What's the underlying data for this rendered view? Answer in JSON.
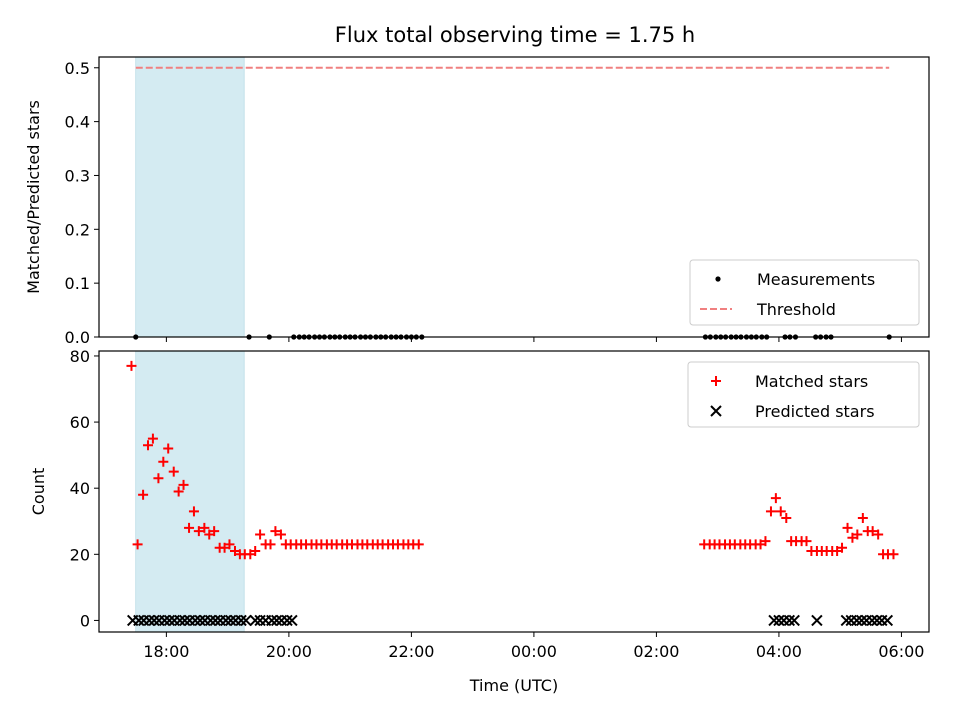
{
  "chart_data": [
    {
      "type": "scatter",
      "title": "Flux total observing time = 1.75 h",
      "xlabel": "",
      "ylabel": "Matched/Predicted stars",
      "ylim": [
        0,
        0.52
      ],
      "yticks": [
        "0.0",
        "0.1",
        "0.2",
        "0.3",
        "0.4",
        "0.5"
      ],
      "ytick_values": [
        0,
        0.1,
        0.2,
        0.3,
        0.4,
        0.5
      ],
      "threshold": {
        "name": "Threshold",
        "value": 0.5,
        "x_start": 17.5,
        "x_end": 29.8,
        "color": "#f08080"
      },
      "shaded_interval": {
        "x_start": 17.5,
        "x_end": 19.27,
        "color": "#d4ebf2"
      },
      "legend": {
        "position": "lower-right",
        "entries": [
          "Measurements",
          "Threshold"
        ]
      },
      "series": [
        {
          "name": "Measurements",
          "marker": "dot",
          "color": "#000000",
          "x": [
            17.5,
            19.35,
            19.68,
            20.08,
            20.17,
            20.25,
            20.33,
            20.42,
            20.5,
            20.58,
            20.67,
            20.75,
            20.83,
            20.92,
            21.0,
            21.08,
            21.17,
            21.25,
            21.33,
            21.42,
            21.5,
            21.58,
            21.67,
            21.75,
            21.83,
            21.92,
            22.0,
            22.08,
            22.17,
            26.8,
            26.88,
            26.97,
            27.05,
            27.13,
            27.22,
            27.3,
            27.38,
            27.47,
            27.55,
            27.63,
            27.72,
            27.8,
            28.1,
            28.18,
            28.27,
            28.6,
            28.68,
            28.77,
            28.85,
            29.8
          ],
          "y": [
            0,
            0,
            0,
            0,
            0,
            0,
            0,
            0,
            0,
            0,
            0,
            0,
            0,
            0,
            0,
            0,
            0,
            0,
            0,
            0,
            0,
            0,
            0,
            0,
            0,
            0,
            0,
            0,
            0,
            0,
            0,
            0,
            0,
            0,
            0,
            0,
            0,
            0,
            0,
            0,
            0,
            0,
            0,
            0,
            0,
            0,
            0,
            0,
            0,
            0
          ]
        }
      ]
    },
    {
      "type": "scatter",
      "title": "",
      "xlabel": "Time (UTC)",
      "ylabel": "Count",
      "ylim": [
        -3.5,
        81.5
      ],
      "yticks": [
        "0",
        "20",
        "40",
        "60",
        "80"
      ],
      "ytick_values": [
        0,
        20,
        40,
        60,
        80
      ],
      "shaded_interval": {
        "x_start": 17.5,
        "x_end": 19.27,
        "color": "#d4ebf2"
      },
      "legend": {
        "position": "upper-right",
        "entries": [
          "Matched stars",
          "Predicted stars"
        ]
      },
      "series": [
        {
          "name": "Matched stars",
          "marker": "plus",
          "color": "#ff0000",
          "x": [
            17.43,
            17.53,
            17.62,
            17.7,
            17.78,
            17.87,
            17.95,
            18.03,
            18.12,
            18.2,
            18.28,
            18.37,
            18.45,
            18.53,
            18.62,
            18.7,
            18.78,
            18.87,
            18.95,
            19.03,
            19.12,
            19.2,
            19.28,
            19.37,
            19.45,
            19.53,
            19.62,
            19.7,
            19.78,
            19.87,
            19.95,
            20.03,
            20.12,
            20.2,
            20.28,
            20.37,
            20.45,
            20.53,
            20.62,
            20.7,
            20.78,
            20.87,
            20.95,
            21.03,
            21.12,
            21.2,
            21.28,
            21.37,
            21.45,
            21.53,
            21.62,
            21.7,
            21.78,
            21.87,
            21.95,
            22.03,
            22.12,
            26.78,
            26.87,
            26.95,
            27.03,
            27.12,
            27.2,
            27.28,
            27.37,
            27.45,
            27.53,
            27.62,
            27.7,
            27.78,
            27.87,
            27.95,
            28.03,
            28.12,
            28.2,
            28.28,
            28.37,
            28.45,
            28.53,
            28.62,
            28.7,
            28.78,
            28.87,
            28.95,
            29.03,
            29.12,
            29.2,
            29.28,
            29.37,
            29.45,
            29.53,
            29.62,
            29.7,
            29.78,
            29.87
          ],
          "y": [
            77,
            23,
            38,
            53,
            55,
            43,
            48,
            52,
            45,
            39,
            41,
            28,
            33,
            27,
            28,
            26,
            27,
            22,
            22,
            23,
            21,
            20,
            20,
            20,
            21,
            26,
            23,
            23,
            27,
            26,
            23,
            23,
            23,
            23,
            23,
            23,
            23,
            23,
            23,
            23,
            23,
            23,
            23,
            23,
            23,
            23,
            23,
            23,
            23,
            23,
            23,
            23,
            23,
            23,
            23,
            23,
            23,
            23,
            23,
            23,
            23,
            23,
            23,
            23,
            23,
            23,
            23,
            23,
            23,
            24,
            33,
            37,
            33,
            31,
            24,
            24,
            24,
            24,
            21,
            21,
            21,
            21,
            21,
            21,
            22,
            28,
            25,
            26,
            31,
            27,
            27,
            26,
            20,
            20,
            20
          ]
        },
        {
          "name": "Predicted stars",
          "marker": "x",
          "color": "#000000",
          "x": [
            17.45,
            17.55,
            17.63,
            17.72,
            17.8,
            17.88,
            17.97,
            18.05,
            18.13,
            18.22,
            18.3,
            18.38,
            18.47,
            18.55,
            18.63,
            18.72,
            18.8,
            18.88,
            18.97,
            19.05,
            19.13,
            19.22,
            19.3,
            19.45,
            19.53,
            19.62,
            19.72,
            19.8,
            19.88,
            19.97,
            20.05,
            27.92,
            28.0,
            28.08,
            28.17,
            28.25,
            28.62,
            29.1,
            29.18,
            29.27,
            29.35,
            29.43,
            29.52,
            29.6,
            29.68,
            29.77
          ],
          "y": [
            0,
            0,
            0,
            0,
            0,
            0,
            0,
            0,
            0,
            0,
            0,
            0,
            0,
            0,
            0,
            0,
            0,
            0,
            0,
            0,
            0,
            0,
            0,
            0,
            0,
            0,
            0,
            0,
            0,
            0,
            0,
            0,
            0,
            0,
            0,
            0,
            0,
            0,
            0,
            0,
            0,
            0,
            0,
            0,
            0,
            0
          ]
        }
      ]
    }
  ],
  "x_axis": {
    "xlim": [
      16.9,
      30.45
    ],
    "tick_values": [
      18,
      20,
      22,
      24,
      26,
      28,
      30
    ],
    "tick_labels": [
      "18:00",
      "20:00",
      "22:00",
      "00:00",
      "02:00",
      "04:00",
      "06:00"
    ]
  }
}
